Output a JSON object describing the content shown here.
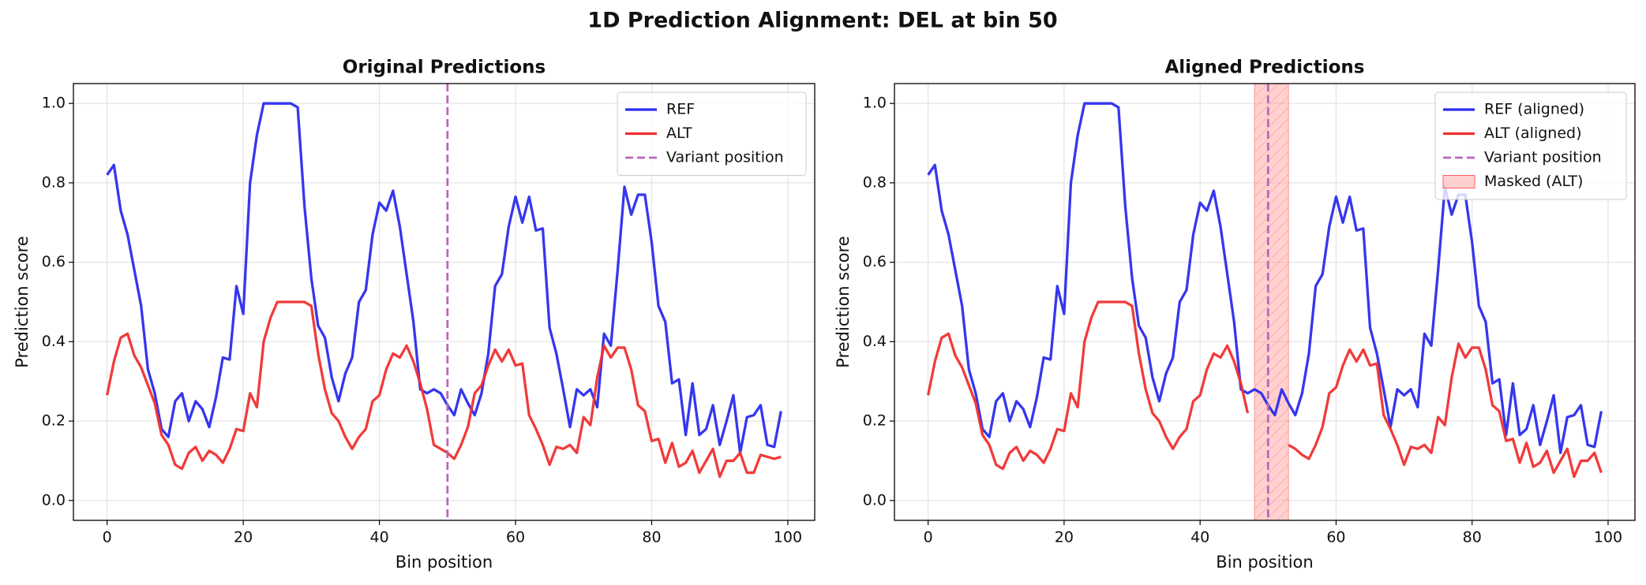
{
  "title": "1D Prediction Alignment: DEL at bin 50",
  "chart_data": [
    {
      "type": "line",
      "title": "Original Predictions",
      "x_label": "Bin position",
      "y_label": "Prediction score",
      "x": [
        0,
        1,
        2,
        3,
        4,
        5,
        6,
        7,
        8,
        9,
        10,
        11,
        12,
        13,
        14,
        15,
        16,
        17,
        18,
        19,
        20,
        21,
        22,
        23,
        24,
        25,
        26,
        27,
        28,
        29,
        30,
        31,
        32,
        33,
        34,
        35,
        36,
        37,
        38,
        39,
        40,
        41,
        42,
        43,
        44,
        45,
        46,
        47,
        48,
        49,
        50,
        51,
        52,
        53,
        54,
        55,
        56,
        57,
        58,
        59,
        60,
        61,
        62,
        63,
        64,
        65,
        66,
        67,
        68,
        69,
        70,
        71,
        72,
        73,
        74,
        75,
        76,
        77,
        78,
        79,
        80,
        81,
        82,
        83,
        84,
        85,
        86,
        87,
        88,
        89,
        90,
        91,
        92,
        93,
        94,
        95,
        96,
        97,
        98,
        99
      ],
      "series": [
        {
          "name": "REF",
          "color": "#2b2bee",
          "values": [
            0.82,
            0.845,
            0.73,
            0.67,
            0.58,
            0.49,
            0.33,
            0.27,
            0.18,
            0.16,
            0.25,
            0.27,
            0.2,
            0.25,
            0.23,
            0.185,
            0.26,
            0.36,
            0.355,
            0.54,
            0.47,
            0.8,
            0.92,
            1.0,
            1.0,
            1.0,
            1.0,
            1.0,
            0.99,
            0.74,
            0.56,
            0.44,
            0.41,
            0.31,
            0.25,
            0.32,
            0.36,
            0.5,
            0.53,
            0.67,
            0.75,
            0.73,
            0.78,
            0.69,
            0.57,
            0.45,
            0.28,
            0.27,
            0.28,
            0.27,
            0.24,
            0.215,
            0.28,
            0.245,
            0.215,
            0.27,
            0.37,
            0.54,
            0.57,
            0.69,
            0.765,
            0.7,
            0.765,
            0.68,
            0.685,
            0.435,
            0.37,
            0.28,
            0.185,
            0.28,
            0.265,
            0.28,
            0.235,
            0.42,
            0.39,
            0.58,
            0.79,
            0.72,
            0.77,
            0.77,
            0.65,
            0.49,
            0.45,
            0.295,
            0.305,
            0.165,
            0.295,
            0.165,
            0.18,
            0.24,
            0.14,
            0.2,
            0.265,
            0.12,
            0.21,
            0.215,
            0.24,
            0.14,
            0.135,
            0.225
          ]
        },
        {
          "name": "ALT",
          "color": "#f03030",
          "values": [
            0.265,
            0.35,
            0.41,
            0.42,
            0.365,
            0.335,
            0.29,
            0.245,
            0.165,
            0.14,
            0.09,
            0.08,
            0.12,
            0.135,
            0.1,
            0.125,
            0.115,
            0.095,
            0.13,
            0.18,
            0.175,
            0.27,
            0.235,
            0.4,
            0.46,
            0.5,
            0.5,
            0.5,
            0.5,
            0.5,
            0.49,
            0.37,
            0.28,
            0.22,
            0.2,
            0.16,
            0.13,
            0.16,
            0.18,
            0.25,
            0.265,
            0.33,
            0.37,
            0.36,
            0.39,
            0.35,
            0.295,
            0.23,
            0.14,
            0.13,
            0.12,
            0.105,
            0.14,
            0.185,
            0.27,
            0.29,
            0.34,
            0.38,
            0.35,
            0.38,
            0.34,
            0.345,
            0.215,
            0.18,
            0.14,
            0.09,
            0.135,
            0.13,
            0.14,
            0.12,
            0.21,
            0.19,
            0.31,
            0.39,
            0.36,
            0.385,
            0.385,
            0.33,
            0.24,
            0.225,
            0.15,
            0.155,
            0.095,
            0.145,
            0.085,
            0.095,
            0.125,
            0.07,
            0.1,
            0.13,
            0.06,
            0.1,
            0.1,
            0.12,
            0.07,
            0.07,
            0.115,
            0.11,
            0.105,
            0.11
          ]
        }
      ],
      "variant_position": 50,
      "variant_label": "Variant position",
      "variant_color": "#bb66bb",
      "xlim": [
        -4.95,
        103.95
      ],
      "ylim": [
        -0.05,
        1.05
      ],
      "xticks": [
        0,
        20,
        40,
        60,
        80,
        100
      ],
      "yticks": [
        {
          "value": 0,
          "label": "0.0"
        },
        0.2,
        0.4,
        0.6,
        0.8,
        {
          "value": 1,
          "label": "1.0"
        }
      ],
      "grid": true,
      "legend": "upper right"
    },
    {
      "type": "line",
      "title": "Aligned Predictions",
      "x_label": "Bin position",
      "y_label": "Prediction score",
      "x": [
        0,
        1,
        2,
        3,
        4,
        5,
        6,
        7,
        8,
        9,
        10,
        11,
        12,
        13,
        14,
        15,
        16,
        17,
        18,
        19,
        20,
        21,
        22,
        23,
        24,
        25,
        26,
        27,
        28,
        29,
        30,
        31,
        32,
        33,
        34,
        35,
        36,
        37,
        38,
        39,
        40,
        41,
        42,
        43,
        44,
        45,
        46,
        47,
        48,
        49,
        50,
        51,
        52,
        53,
        54,
        55,
        56,
        57,
        58,
        59,
        60,
        61,
        62,
        63,
        64,
        65,
        66,
        67,
        68,
        69,
        70,
        71,
        72,
        73,
        74,
        75,
        76,
        77,
        78,
        79,
        80,
        81,
        82,
        83,
        84,
        85,
        86,
        87,
        88,
        89,
        90,
        91,
        92,
        93,
        94,
        95,
        96,
        97,
        98,
        99
      ],
      "series": [
        {
          "name": "REF (aligned)",
          "color": "#2b2bee",
          "values": [
            0.82,
            0.845,
            0.73,
            0.67,
            0.58,
            0.49,
            0.33,
            0.27,
            0.18,
            0.16,
            0.25,
            0.27,
            0.2,
            0.25,
            0.23,
            0.185,
            0.26,
            0.36,
            0.355,
            0.54,
            0.47,
            0.8,
            0.92,
            1.0,
            1.0,
            1.0,
            1.0,
            1.0,
            0.99,
            0.74,
            0.56,
            0.44,
            0.41,
            0.31,
            0.25,
            0.32,
            0.36,
            0.5,
            0.53,
            0.67,
            0.75,
            0.73,
            0.78,
            0.69,
            0.57,
            0.45,
            0.28,
            0.27,
            0.28,
            0.27,
            0.24,
            0.215,
            0.28,
            0.245,
            0.215,
            0.27,
            0.37,
            0.54,
            0.57,
            0.69,
            0.765,
            0.7,
            0.765,
            0.68,
            0.685,
            0.435,
            0.37,
            0.28,
            0.185,
            0.28,
            0.265,
            0.28,
            0.235,
            0.42,
            0.39,
            0.58,
            0.79,
            0.72,
            0.77,
            0.77,
            0.65,
            0.49,
            0.45,
            0.295,
            0.305,
            0.165,
            0.295,
            0.165,
            0.18,
            0.24,
            0.14,
            0.2,
            0.265,
            0.12,
            0.21,
            0.215,
            0.24,
            0.14,
            0.135,
            0.225
          ]
        },
        {
          "name": "ALT (aligned)",
          "color": "#f03030",
          "values": [
            0.265,
            0.35,
            0.41,
            0.42,
            0.365,
            0.335,
            0.29,
            0.245,
            0.165,
            0.14,
            0.09,
            0.08,
            0.12,
            0.135,
            0.1,
            0.125,
            0.115,
            0.095,
            0.13,
            0.18,
            0.175,
            0.27,
            0.235,
            0.4,
            0.46,
            0.5,
            0.5,
            0.5,
            0.5,
            0.5,
            0.49,
            0.37,
            0.28,
            0.22,
            0.2,
            0.16,
            0.13,
            0.16,
            0.18,
            0.25,
            0.265,
            0.33,
            0.37,
            0.36,
            0.39,
            0.35,
            0.295,
            0.22,
            null,
            null,
            null,
            null,
            null,
            0.14,
            0.13,
            0.115,
            0.105,
            0.14,
            0.185,
            0.27,
            0.285,
            0.34,
            0.38,
            0.35,
            0.38,
            0.34,
            0.345,
            0.215,
            0.18,
            0.14,
            0.09,
            0.135,
            0.13,
            0.14,
            0.12,
            0.21,
            0.19,
            0.31,
            0.395,
            0.36,
            0.385,
            0.385,
            0.33,
            0.24,
            0.225,
            0.15,
            0.155,
            0.095,
            0.145,
            0.085,
            0.095,
            0.125,
            0.07,
            0.1,
            0.13,
            0.06,
            0.1,
            0.1,
            0.12,
            0.07
          ]
        }
      ],
      "variant_position": 50,
      "variant_label": "Variant position",
      "variant_color": "#bb66bb",
      "masked_span": [
        48,
        53
      ],
      "mask_label": "Masked (ALT)",
      "mask_color": "#ff9999",
      "xlim": [
        -4.95,
        103.95
      ],
      "ylim": [
        -0.05,
        1.05
      ],
      "xticks": [
        0,
        20,
        40,
        60,
        80,
        100
      ],
      "yticks": [
        {
          "value": 0,
          "label": "0.0"
        },
        0.2,
        0.4,
        0.6,
        0.8,
        {
          "value": 1,
          "label": "1.0"
        }
      ],
      "grid": true,
      "legend": "upper right"
    }
  ]
}
